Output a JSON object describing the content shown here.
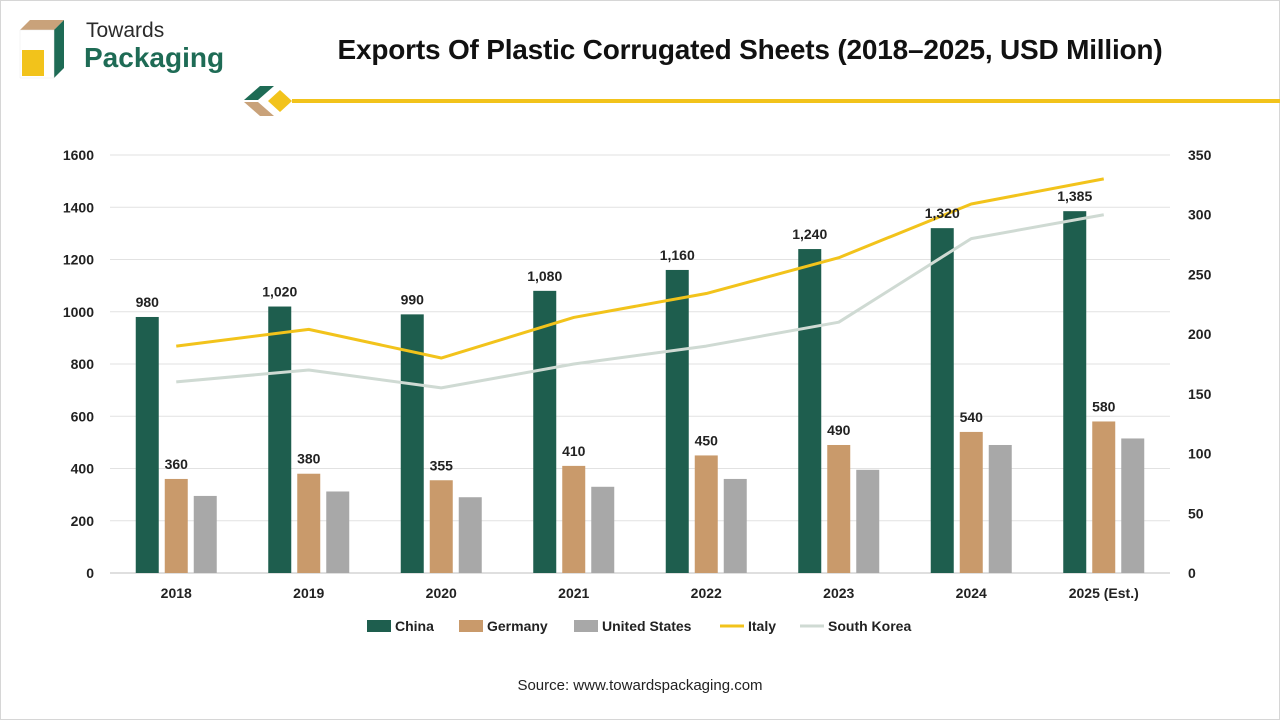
{
  "header": {
    "logo_line1": "Towards",
    "logo_line2": "Packaging",
    "title": "Exports Of Plastic Corrugated Sheets (2018–2025, USD Million)"
  },
  "footer": {
    "source": "Source: www.towardspackaging.com"
  },
  "colors": {
    "china": "#1e5e4e",
    "germany": "#c99a6b",
    "united_states": "#a8a8a8",
    "italy": "#f2c31b",
    "south_korea": "#cfdad3",
    "accent_green": "#1e6b55",
    "accent_yellow": "#f2c31b",
    "accent_tan": "#c9a27a"
  },
  "chart_data": {
    "type": "bar",
    "categories": [
      "2018",
      "2019",
      "2020",
      "2021",
      "2022",
      "2023",
      "2024",
      "2025 (Est.)"
    ],
    "y_left": {
      "ylim": [
        0,
        1600
      ],
      "ticks": [
        "0",
        "200",
        "400",
        "600",
        "800",
        "1000",
        "1200",
        "1400",
        "1600"
      ]
    },
    "y_right": {
      "ylim": [
        0,
        350
      ],
      "ticks": [
        "0",
        "50",
        "100",
        "150",
        "200",
        "250",
        "300",
        "350"
      ]
    },
    "grid": true,
    "legend_position": "bottom",
    "series": [
      {
        "name": "China",
        "kind": "bar",
        "axis": "left",
        "values": [
          980,
          1020,
          990,
          1080,
          1160,
          1240,
          1320,
          1385
        ],
        "labels": [
          "980",
          "1,020",
          "990",
          "1,080",
          "1,160",
          "1,240",
          "1,320",
          "1,385"
        ]
      },
      {
        "name": "Germany",
        "kind": "bar",
        "axis": "left",
        "values": [
          360,
          380,
          355,
          410,
          450,
          490,
          540,
          580
        ],
        "labels": [
          "360",
          "380",
          "355",
          "410",
          "450",
          "490",
          "540",
          "580"
        ]
      },
      {
        "name": "United States",
        "kind": "bar",
        "axis": "left",
        "values": [
          295,
          312,
          290,
          330,
          360,
          395,
          490,
          515
        ]
      },
      {
        "name": "Italy",
        "kind": "line",
        "axis": "right",
        "values": [
          190,
          204,
          180,
          214,
          234,
          264,
          309,
          330
        ]
      },
      {
        "name": "South Korea",
        "kind": "line",
        "axis": "right",
        "values": [
          160,
          170,
          155,
          175,
          190,
          210,
          280,
          300
        ]
      }
    ]
  }
}
